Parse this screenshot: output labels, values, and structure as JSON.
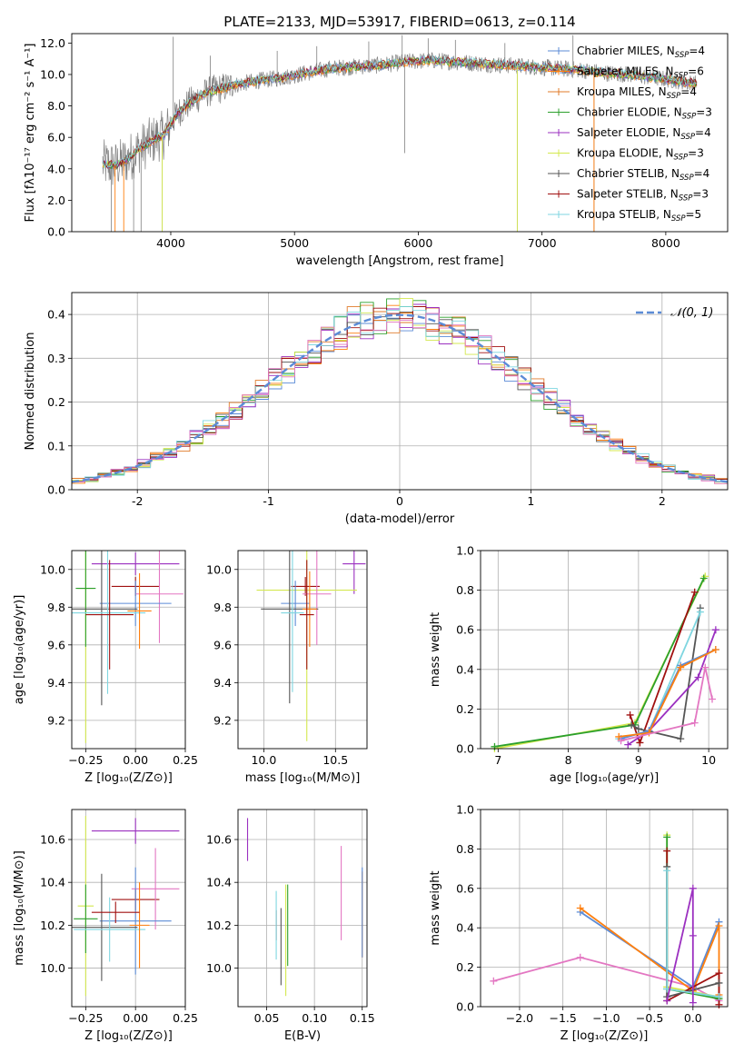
{
  "figure_title": "PLATE=2133, MJD=53917, FIBERID=0613, z=0.114",
  "colors": {
    "chabrier_miles": "#5b8bd6",
    "salpeter_miles": "#ff7f0e",
    "kroupa_miles": "#e07b2a",
    "chabrier_elodie": "#2ca02c",
    "salpeter_elodie": "#9b30c0",
    "kroupa_elodie": "#d4e84f",
    "chabrier_stelib": "#555555",
    "salpeter_stelib": "#a01010",
    "kroupa_stelib": "#7fd6e0",
    "pink": "#e377c2",
    "normal_curve": "#5b8bd6",
    "grid": "#b0b0b0"
  },
  "chart_data": [
    {
      "id": "spectrum",
      "type": "line",
      "xlabel": "wavelength [Angstrom, rest frame]",
      "ylabel": "Flux [fλ10⁻¹⁷ erg cm⁻² s⁻¹ A⁻¹]",
      "xlim": [
        3200,
        8500
      ],
      "ylim": [
        0,
        12.6
      ],
      "xticks": [
        4000,
        5000,
        6000,
        7000,
        8000
      ],
      "yticks": [
        0,
        2,
        4,
        6,
        8,
        10,
        12
      ],
      "grid": false,
      "legend_position": "upper-right",
      "legend": [
        {
          "base": "Chabrier MILES, N",
          "sub": "SSP",
          "tail": "=4",
          "color_key": "chabrier_miles"
        },
        {
          "base": "Salpeter MILES, N",
          "sub": "SSP",
          "tail": "=6",
          "color_key": "salpeter_miles"
        },
        {
          "base": "Kroupa MILES, N",
          "sub": "SSP",
          "tail": "=4",
          "color_key": "kroupa_miles"
        },
        {
          "base": "Chabrier ELODIE, N",
          "sub": "SSP",
          "tail": "=3",
          "color_key": "chabrier_elodie"
        },
        {
          "base": "Salpeter ELODIE, N",
          "sub": "SSP",
          "tail": "=4",
          "color_key": "salpeter_elodie"
        },
        {
          "base": "Kroupa ELODIE, N",
          "sub": "SSP",
          "tail": "=3",
          "color_key": "kroupa_elodie"
        },
        {
          "base": "Chabrier STELIB, N",
          "sub": "SSP",
          "tail": "=4",
          "color_key": "chabrier_stelib"
        },
        {
          "base": "Salpeter STELIB, N",
          "sub": "SSP",
          "tail": "=3",
          "color_key": "salpeter_stelib"
        },
        {
          "base": "Kroupa STELIB, N",
          "sub": "SSP",
          "tail": "=5",
          "color_key": "kroupa_stelib"
        }
      ],
      "continuum": {
        "x": [
          3450,
          3550,
          3650,
          3750,
          3850,
          3950,
          4050,
          4150,
          4300,
          4500,
          4700,
          4900,
          5100,
          5300,
          5500,
          5700,
          5900,
          6100,
          6300,
          6500,
          6700,
          6900,
          7100,
          7300,
          7500,
          7700,
          7900,
          8100,
          8250
        ],
        "y": [
          4.3,
          4.2,
          4.6,
          5.3,
          5.8,
          6.2,
          7.5,
          8.2,
          8.9,
          9.3,
          9.6,
          9.8,
          10.1,
          10.4,
          10.5,
          10.6,
          10.8,
          10.9,
          10.8,
          10.7,
          10.6,
          10.5,
          10.4,
          10.3,
          10.1,
          10.0,
          9.8,
          9.6,
          9.4
        ]
      },
      "spikes": [
        {
          "x": 3520,
          "y": 0.0
        },
        {
          "x": 3700,
          "y": 0.0
        },
        {
          "x": 3760,
          "y": 0.0
        },
        {
          "x": 3930,
          "y": 0.0
        },
        {
          "x": 4020,
          "y": 12.4
        },
        {
          "x": 4320,
          "y": 11.2
        },
        {
          "x": 4860,
          "y": 11.5
        },
        {
          "x": 5180,
          "y": 11.8
        },
        {
          "x": 5600,
          "y": 12.1
        },
        {
          "x": 5870,
          "y": 12.5
        },
        {
          "x": 5890,
          "y": 5.0
        },
        {
          "x": 6080,
          "y": 12.3
        },
        {
          "x": 6300,
          "y": 12.2
        },
        {
          "x": 6700,
          "y": 12.0
        },
        {
          "x": 6800,
          "y": 0.0
        },
        {
          "x": 7250,
          "y": 12.5
        },
        {
          "x": 7420,
          "y": 0.0
        }
      ]
    },
    {
      "id": "residual_hist",
      "type": "histogram",
      "xlabel": "(data-model)/error",
      "ylabel": "Normed distribution",
      "xlim": [
        -2.5,
        2.5
      ],
      "ylim": [
        0,
        0.45
      ],
      "xticks": [
        -2,
        -1,
        0,
        1,
        2
      ],
      "yticks": [
        0.0,
        0.1,
        0.2,
        0.3,
        0.4
      ],
      "grid": true,
      "legend_position": "upper-right",
      "legend": [
        {
          "label": "𝒩(0, 1)",
          "color_key": "normal_curve",
          "style": "dashed"
        }
      ],
      "bin_width": 0.1
    },
    {
      "id": "age_vs_Z",
      "type": "scatter-errorbar",
      "xlabel": "Z [log₁₀(Z/Z⊙)]",
      "ylabel": "age  [log₁₀(age/yr)]",
      "xlim": [
        -0.32,
        0.25
      ],
      "ylim": [
        9.05,
        10.1
      ],
      "xticks": [
        -0.25,
        0.0,
        0.25
      ],
      "xticklabels": [
        "−0.25",
        "0.00",
        "0.25"
      ],
      "yticks": [
        9.2,
        9.4,
        9.6,
        9.8,
        10.0
      ],
      "grid": true,
      "points": [
        {
          "color_key": "salpeter_elodie",
          "x": 0.0,
          "xerr": 0.22,
          "y": 10.03,
          "yerr": 0.06
        },
        {
          "color_key": "kroupa_elodie",
          "x": -0.25,
          "xerr": 0.04,
          "y": 9.9,
          "yerr": 0.82
        },
        {
          "color_key": "chabrier_elodie",
          "x": -0.25,
          "xerr": 0.05,
          "y": 9.9,
          "yerr": 0.31
        },
        {
          "color_key": "salpeter_stelib",
          "x": 0.0,
          "xerr": 0.12,
          "y": 9.91,
          "yerr": 0.05
        },
        {
          "color_key": "pink",
          "x": 0.12,
          "xerr": 0.12,
          "y": 9.87,
          "yerr": 0.26
        },
        {
          "color_key": "chabrier_miles",
          "x": 0.0,
          "xerr": 0.18,
          "y": 9.82,
          "yerr": 0.12
        },
        {
          "color_key": "chabrier_stelib",
          "x": -0.17,
          "xerr": 0.18,
          "y": 9.79,
          "yerr": 0.51
        },
        {
          "color_key": "kroupa_stelib",
          "x": -0.14,
          "xerr": 0.19,
          "y": 9.77,
          "yerr": 0.43
        },
        {
          "color_key": "salpeter_miles",
          "x": 0.02,
          "xerr": 0.06,
          "y": 9.78,
          "yerr": 0.2
        },
        {
          "color_key": "salpeter_stelib",
          "x": -0.13,
          "xerr": 0.12,
          "y": 9.76,
          "yerr": 0.29
        }
      ]
    },
    {
      "id": "age_vs_mass",
      "type": "scatter-errorbar",
      "xlabel": "mass [log₁₀(M/M⊙)]",
      "ylabel": "",
      "xlim": [
        9.82,
        10.72
      ],
      "ylim": [
        9.05,
        10.1
      ],
      "xticks": [
        10.0,
        10.5
      ],
      "xticklabels": [
        "10.0",
        "10.5"
      ],
      "yticks": [
        9.2,
        9.4,
        9.6,
        9.8,
        10.0
      ],
      "grid": true,
      "points": [
        {
          "color_key": "salpeter_elodie",
          "x": 10.63,
          "xerr": 0.08,
          "y": 10.03,
          "yerr": 0.16
        },
        {
          "color_key": "kroupa_elodie",
          "x": 10.3,
          "xerr": 0.35,
          "y": 9.89,
          "yerr": 0.8
        },
        {
          "color_key": "salpeter_stelib",
          "x": 10.29,
          "xerr": 0.1,
          "y": 9.91,
          "yerr": 0.05
        },
        {
          "color_key": "pink",
          "x": 10.37,
          "xerr": 0.1,
          "y": 9.87,
          "yerr": 0.27
        },
        {
          "color_key": "chabrier_miles",
          "x": 10.22,
          "xerr": 0.1,
          "y": 9.82,
          "yerr": 0.12
        },
        {
          "color_key": "chabrier_stelib",
          "x": 10.18,
          "xerr": 0.2,
          "y": 9.79,
          "yerr": 0.5
        },
        {
          "color_key": "kroupa_stelib",
          "x": 10.2,
          "xerr": 0.08,
          "y": 9.77,
          "yerr": 0.42
        },
        {
          "color_key": "salpeter_miles",
          "x": 10.32,
          "xerr": 0.05,
          "y": 9.79,
          "yerr": 0.2
        },
        {
          "color_key": "salpeter_stelib",
          "x": 10.3,
          "xerr": 0.05,
          "y": 9.76,
          "yerr": 0.29
        }
      ]
    },
    {
      "id": "weight_vs_age",
      "type": "line",
      "xlabel": "age  [log₁₀(age/yr)]",
      "ylabel": "mass weight",
      "xlim": [
        6.75,
        10.27
      ],
      "ylim": [
        0,
        1.0
      ],
      "xticks": [
        7,
        8,
        9,
        10
      ],
      "yticks": [
        0.0,
        0.2,
        0.4,
        0.6,
        0.8,
        1.0
      ],
      "grid": true,
      "series": [
        {
          "color_key": "kroupa_elodie",
          "x": [
            6.95,
            8.95,
            9.95
          ],
          "y": [
            0.0,
            0.13,
            0.87
          ]
        },
        {
          "color_key": "chabrier_elodie",
          "x": [
            6.95,
            8.95,
            9.93
          ],
          "y": [
            0.01,
            0.12,
            0.86
          ]
        },
        {
          "color_key": "salpeter_stelib",
          "x": [
            8.88,
            9.02,
            9.8
          ],
          "y": [
            0.17,
            0.03,
            0.79
          ]
        },
        {
          "color_key": "chabrier_stelib",
          "x": [
            8.9,
            9.0,
            9.6,
            9.88
          ],
          "y": [
            0.12,
            0.1,
            0.05,
            0.71
          ]
        },
        {
          "color_key": "kroupa_stelib",
          "x": [
            8.72,
            9.15,
            9.88
          ],
          "y": [
            0.05,
            0.09,
            0.69
          ]
        },
        {
          "color_key": "salpeter_elodie",
          "x": [
            8.85,
            9.15,
            9.85,
            10.1
          ],
          "y": [
            0.02,
            0.09,
            0.36,
            0.6
          ]
        },
        {
          "color_key": "chabrier_miles",
          "x": [
            8.75,
            9.15,
            9.6,
            10.1
          ],
          "y": [
            0.05,
            0.09,
            0.42,
            0.5
          ]
        },
        {
          "color_key": "salpeter_miles",
          "x": [
            8.72,
            9.15,
            9.6,
            10.1
          ],
          "y": [
            0.06,
            0.08,
            0.41,
            0.5
          ]
        },
        {
          "color_key": "pink",
          "x": [
            8.75,
            9.8,
            9.95,
            10.05
          ],
          "y": [
            0.04,
            0.13,
            0.41,
            0.25
          ]
        }
      ]
    },
    {
      "id": "mass_vs_Z",
      "type": "scatter-errorbar",
      "xlabel": "Z [log₁₀(Z/Z⊙)]",
      "ylabel": "mass [log₁₀(M/M⊙)]",
      "xlim": [
        -0.32,
        0.25
      ],
      "ylim": [
        9.82,
        10.74
      ],
      "xticks": [
        -0.25,
        0.0,
        0.25
      ],
      "xticklabels": [
        "−0.25",
        "0.00",
        "0.25"
      ],
      "yticks": [
        10.0,
        10.2,
        10.4,
        10.6
      ],
      "grid": true,
      "points": [
        {
          "color_key": "salpeter_elodie",
          "x": 0.0,
          "xerr": 0.22,
          "y": 10.64,
          "yerr": 0.06
        },
        {
          "color_key": "kroupa_elodie",
          "x": -0.25,
          "xerr": 0.04,
          "y": 10.29,
          "yerr": 0.42
        },
        {
          "color_key": "chabrier_elodie",
          "x": -0.25,
          "xerr": 0.06,
          "y": 10.23,
          "yerr": 0.16
        },
        {
          "color_key": "salpeter_stelib",
          "x": 0.0,
          "xerr": 0.12,
          "y": 10.32,
          "yerr": 0.05
        },
        {
          "color_key": "pink",
          "x": 0.1,
          "xerr": 0.12,
          "y": 10.37,
          "yerr": 0.19
        },
        {
          "color_key": "chabrier_miles",
          "x": 0.0,
          "xerr": 0.18,
          "y": 10.22,
          "yerr": 0.25
        },
        {
          "color_key": "chabrier_stelib",
          "x": -0.17,
          "xerr": 0.18,
          "y": 10.19,
          "yerr": 0.25
        },
        {
          "color_key": "kroupa_stelib",
          "x": -0.13,
          "xerr": 0.18,
          "y": 10.18,
          "yerr": 0.15
        },
        {
          "color_key": "salpeter_miles",
          "x": 0.02,
          "xerr": 0.05,
          "y": 10.2,
          "yerr": 0.2
        },
        {
          "color_key": "salpeter_stelib",
          "x": -0.1,
          "xerr": 0.12,
          "y": 10.26,
          "yerr": 0.05
        }
      ]
    },
    {
      "id": "mass_vs_EBV",
      "type": "scatter-errorbar",
      "xlabel": "E(B-V)",
      "ylabel": "",
      "xlim": [
        0.02,
        0.155
      ],
      "ylim": [
        9.82,
        10.74
      ],
      "xticks": [
        0.05,
        0.1,
        0.15
      ],
      "xticklabels": [
        "0.05",
        "0.10",
        "0.15"
      ],
      "yticks": [
        10.0,
        10.2,
        10.4,
        10.6
      ],
      "grid": true,
      "points": [
        {
          "color_key": "salpeter_elodie",
          "x": 0.03,
          "xerr": 0,
          "y": 10.6,
          "yerr": 0.1
        },
        {
          "color_key": "salpeter_stelib",
          "x": 0.06,
          "xerr": 0,
          "y": 10.2,
          "yerr": 0.07
        },
        {
          "color_key": "kroupa_stelib",
          "x": 0.06,
          "xerr": 0,
          "y": 10.2,
          "yerr": 0.16
        },
        {
          "color_key": "chabrier_stelib",
          "x": 0.065,
          "xerr": 0,
          "y": 10.1,
          "yerr": 0.18
        },
        {
          "color_key": "kroupa_elodie",
          "x": 0.07,
          "xerr": 0,
          "y": 10.13,
          "yerr": 0.26
        },
        {
          "color_key": "chabrier_elodie",
          "x": 0.072,
          "xerr": 0,
          "y": 10.2,
          "yerr": 0.19
        },
        {
          "color_key": "pink",
          "x": 0.128,
          "xerr": 0,
          "y": 10.35,
          "yerr": 0.22
        },
        {
          "color_key": "salpeter_miles",
          "x": 0.15,
          "xerr": 0,
          "y": 10.25,
          "yerr": 0.2
        },
        {
          "color_key": "chabrier_miles",
          "x": 0.15,
          "xerr": 0,
          "y": 10.26,
          "yerr": 0.21
        }
      ]
    },
    {
      "id": "weight_vs_Z",
      "type": "line",
      "xlabel": "Z [log₁₀(Z/Z⊙)]",
      "ylabel": "mass weight",
      "xlim": [
        -2.45,
        0.4
      ],
      "ylim": [
        0,
        1.0
      ],
      "xticks": [
        -2.0,
        -1.5,
        -1.0,
        -0.5,
        0.0
      ],
      "xticklabels": [
        "−2.0",
        "−1.5",
        "−1.0",
        "−0.5",
        "0.0"
      ],
      "yticks": [
        0.0,
        0.2,
        0.4,
        0.6,
        0.8,
        1.0
      ],
      "grid": true,
      "series": [
        {
          "color_key": "pink",
          "x": [
            -2.3,
            -1.3,
            0.0,
            0.3
          ],
          "y": [
            0.13,
            0.25,
            0.1,
            0.03
          ]
        },
        {
          "color_key": "chabrier_miles",
          "x": [
            -1.3,
            0.0,
            0.3
          ],
          "y": [
            0.48,
            0.1,
            0.43
          ]
        },
        {
          "color_key": "salpeter_miles",
          "x": [
            -1.3,
            0.0,
            0.3,
            0.3
          ],
          "y": [
            0.5,
            0.08,
            0.41,
            0.06
          ]
        },
        {
          "color_key": "kroupa_elodie",
          "x": [
            -0.3,
            -0.3,
            0.3
          ],
          "y": [
            0.87,
            0.1,
            0.05
          ]
        },
        {
          "color_key": "chabrier_elodie",
          "x": [
            -0.3,
            -0.3,
            0.3
          ],
          "y": [
            0.86,
            0.09,
            0.04
          ]
        },
        {
          "color_key": "salpeter_stelib",
          "x": [
            -0.3,
            -0.3,
            0.3,
            0.3
          ],
          "y": [
            0.79,
            0.03,
            0.17,
            0.01
          ]
        },
        {
          "color_key": "chabrier_stelib",
          "x": [
            -0.3,
            -0.3,
            0.3
          ],
          "y": [
            0.71,
            0.05,
            0.12
          ]
        },
        {
          "color_key": "kroupa_stelib",
          "x": [
            -0.3,
            -0.3,
            0.3
          ],
          "y": [
            0.69,
            0.09,
            0.05
          ]
        },
        {
          "color_key": "salpeter_elodie",
          "x": [
            -0.3,
            0.0,
            0.0,
            0.0
          ],
          "y": [
            0.03,
            0.6,
            0.36,
            0.02
          ]
        }
      ]
    }
  ]
}
